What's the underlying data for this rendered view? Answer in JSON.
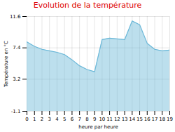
{
  "chart_data": {
    "type": "area",
    "title": "Evolution de la température",
    "x_label": "heure par heure",
    "y_label": "Température en °C",
    "x": [
      0,
      1,
      2,
      3,
      4,
      5,
      6,
      7,
      8,
      9,
      10,
      11,
      12,
      13,
      14,
      15,
      16,
      17,
      18,
      19
    ],
    "values": [
      8.2,
      7.6,
      7.2,
      7.0,
      6.8,
      6.5,
      5.8,
      5.0,
      4.5,
      4.2,
      8.5,
      8.7,
      8.6,
      8.5,
      11.0,
      10.5,
      8.0,
      7.2,
      7.0,
      7.1
    ],
    "color": "#6bb8d8",
    "xlim": [
      0,
      19
    ],
    "xticks": [
      0,
      1,
      2,
      3,
      4,
      5,
      6,
      7,
      8,
      9,
      10,
      11,
      12,
      13,
      14,
      15,
      16,
      17,
      18,
      19
    ],
    "ylim": [
      -1.1,
      11.6
    ],
    "yticks": [
      -1.1,
      3.2,
      7.4,
      11.6
    ],
    "grid": true
  }
}
